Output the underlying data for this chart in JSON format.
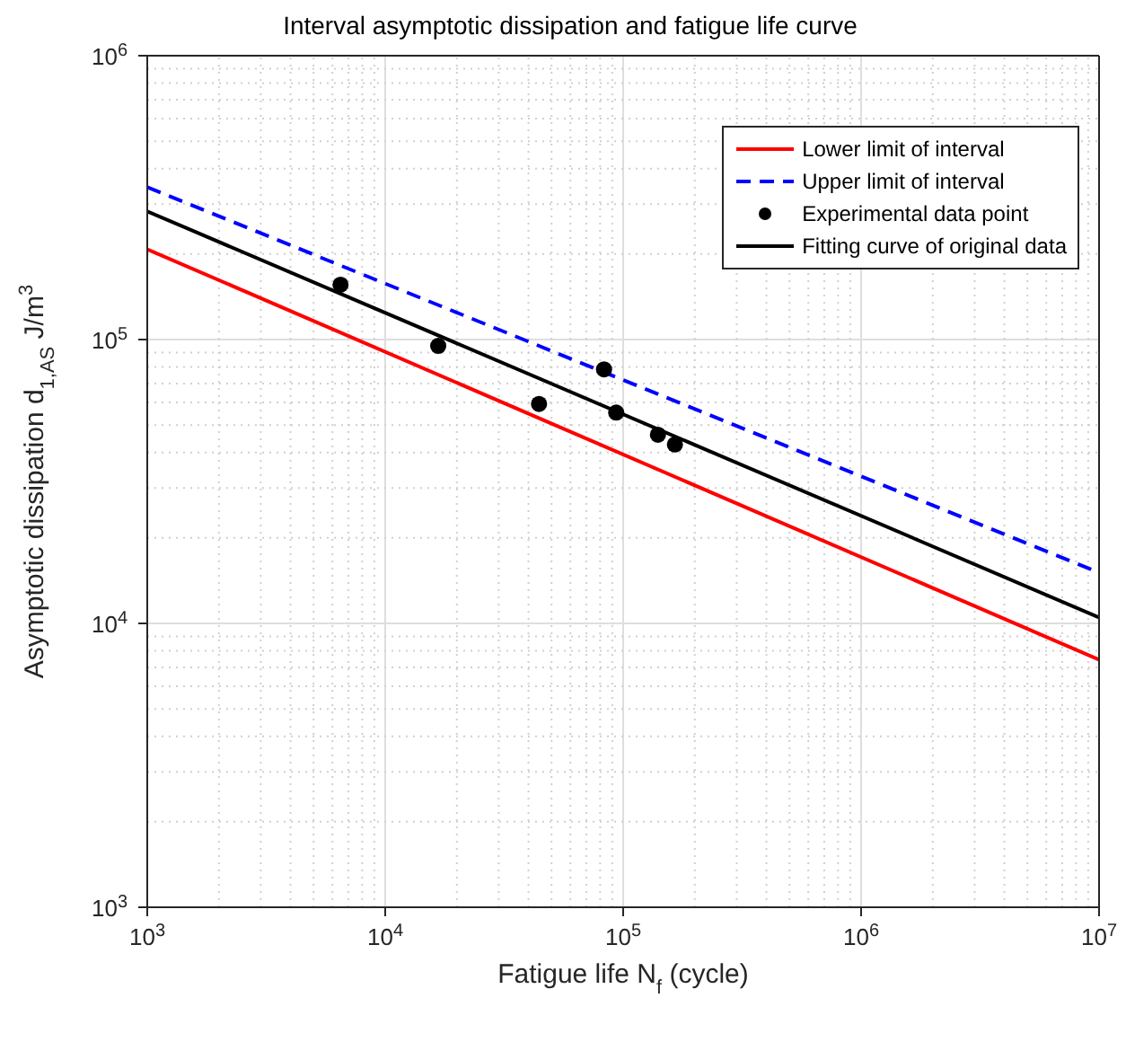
{
  "chart_data": {
    "type": "line",
    "title": "Interval asymptotic dissipation and fatigue life curve",
    "xlabel": "Fatigue life N$_{f}$ (cycle)",
    "ylabel": "Asymptotic dissipation d$_{1,AS}$ J/m$^{3}$",
    "log": "xy",
    "grid": true,
    "legend": "top right",
    "xlim": [
      1000,
      10000000
    ],
    "ylim": [
      1000,
      1000000
    ],
    "xticks": [
      {
        "value": 1000,
        "label": "10$^{3}$"
      },
      {
        "value": 10000,
        "label": "10$^{4}$"
      },
      {
        "value": 100000,
        "label": "10$^{5}$"
      },
      {
        "value": 1000000,
        "label": "10$^{6}$"
      },
      {
        "value": 10000000,
        "label": "10$^{7}$"
      }
    ],
    "yticks": [
      {
        "value": 1000,
        "label": "10$^{3}$"
      },
      {
        "value": 10000,
        "label": "10$^{4}$"
      },
      {
        "value": 100000,
        "label": "10$^{5}$"
      },
      {
        "value": 1000000,
        "label": "10$^{6}$"
      }
    ],
    "series": [
      {
        "name": "Lower limit of interval",
        "type": "line",
        "color": "#ff0000",
        "line_style": "solid",
        "marker": "none",
        "x": [
          1000,
          10000000
        ],
        "values": [
          208000,
          7450
        ]
      },
      {
        "name": "Upper limit of interval",
        "type": "line",
        "color": "#0000ff",
        "line_style": "dashed",
        "marker": "none",
        "x": [
          1000,
          10000000
        ],
        "values": [
          344000,
          15100
        ]
      },
      {
        "name": "Experimental data point",
        "type": "scatter",
        "color": "#000000",
        "marker": "circle",
        "x": [
          6490,
          16700,
          44300,
          83100,
          93500,
          140000,
          165000
        ],
        "values": [
          156000,
          95000,
          59300,
          78500,
          55300,
          46200,
          42700
        ]
      },
      {
        "name": "Fitting curve of original data",
        "type": "line",
        "color": "#000000",
        "line_style": "solid",
        "marker": "none",
        "x": [
          1000,
          10000000
        ],
        "values": [
          283000,
          10500
        ]
      }
    ]
  }
}
